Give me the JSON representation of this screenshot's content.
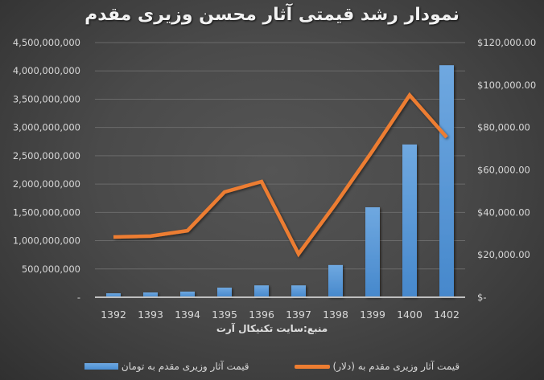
{
  "title": "نمودار رشد قیمتی آثار محسن وزیری مقدم",
  "source": "منبع:سایت تکنیکال آرت",
  "legend": {
    "bar_label": "قیمت آثار وزیری مقدم به تومان",
    "line_label": "قیمت آثار وزیری مقدم به (دلار)"
  },
  "colors": {
    "bar": "#5B9BD5",
    "line": "#ED7D31",
    "background": "#404040",
    "text": "#D9D9D9"
  },
  "left_axis_ticks": [
    "-",
    "500,000,000",
    "1,000,000,000",
    "1,500,000,000",
    "2,000,000,000",
    "2,500,000,000",
    "3,000,000,000",
    "3,500,000,000",
    "4,000,000,000",
    "4,500,000,000"
  ],
  "right_axis_ticks": [
    "$-",
    "$20,000.00",
    "$40,000.00",
    "$60,000.00",
    "$80,000.00",
    "$100,000.00",
    "$120,000.00"
  ],
  "chart_data": {
    "type": "bar+line",
    "title": "نمودار رشد قیمتی آثار محسن وزیری مقدم",
    "xlabel": "منبع:سایت تکنیکال آرت",
    "categories": [
      "1392",
      "1393",
      "1394",
      "1395",
      "1396",
      "1397",
      "1398",
      "1399",
      "1400",
      "1402"
    ],
    "series": [
      {
        "name": "قیمت آثار وزیری مقدم به تومان",
        "type": "bar",
        "axis": "left",
        "values": [
          70000000,
          85000000,
          100000000,
          170000000,
          210000000,
          210000000,
          570000000,
          1590000000,
          2700000000,
          4100000000
        ]
      },
      {
        "name": "قیمت آثار وزیری مقدم به (دلار)",
        "type": "line",
        "axis": "right",
        "values": [
          28400,
          28800,
          31400,
          49600,
          54500,
          20400,
          44000,
          69000,
          95200,
          75400
        ]
      }
    ],
    "left_ylim": [
      0,
      4500000000
    ],
    "right_ylim": [
      0,
      120000
    ],
    "grid": true,
    "legend_position": "bottom"
  }
}
